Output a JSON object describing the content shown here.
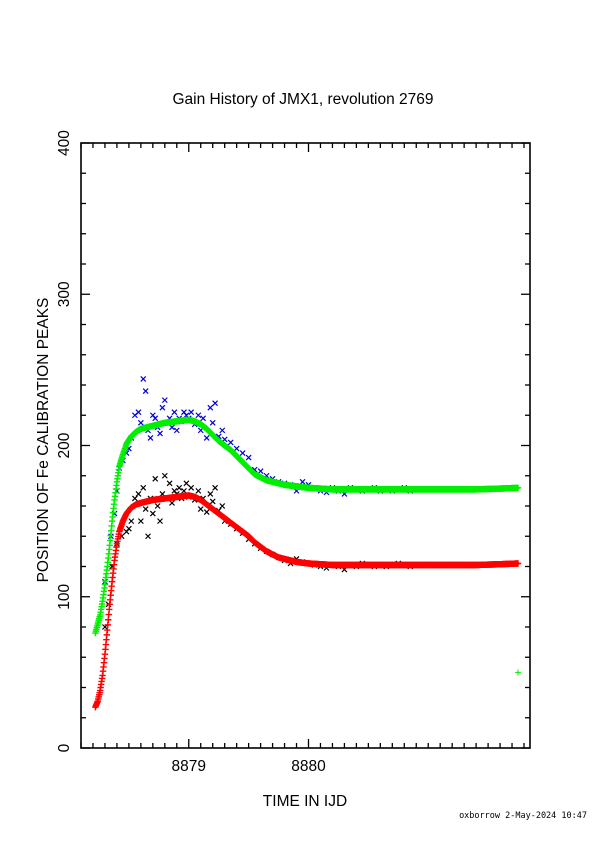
{
  "chart_data": {
    "type": "scatter",
    "title": "Gain History of JMX1, revolution 2769",
    "xlabel": "TIME IN IJD",
    "ylabel": "POSITION OF Fe CALIBRATION PEAKS",
    "xlim": [
      8878.1,
      8881.85
    ],
    "ylim": [
      0,
      400
    ],
    "x_ticks": [
      8879,
      8880
    ],
    "y_ticks": [
      0,
      100,
      200,
      300,
      400
    ],
    "grid": false,
    "footer": "oxborrow 2-May-2024 10:47",
    "series": [
      {
        "color": "#00ee00",
        "marker": "plus",
        "style": "fit",
        "points": [
          [
            8878.22,
            76
          ],
          [
            8878.24,
            82
          ],
          [
            8878.26,
            88
          ],
          [
            8878.28,
            97
          ],
          [
            8878.3,
            108
          ],
          [
            8878.32,
            120
          ],
          [
            8878.34,
            134
          ],
          [
            8878.36,
            150
          ],
          [
            8878.38,
            164
          ],
          [
            8878.4,
            176
          ],
          [
            8878.42,
            186
          ],
          [
            8878.45,
            194
          ],
          [
            8878.48,
            201
          ],
          [
            8878.52,
            206
          ],
          [
            8878.56,
            209
          ],
          [
            8878.6,
            211
          ],
          [
            8878.65,
            212
          ],
          [
            8878.7,
            213
          ],
          [
            8878.75,
            214
          ],
          [
            8878.8,
            215
          ],
          [
            8878.85,
            215.5
          ],
          [
            8878.9,
            216
          ],
          [
            8878.95,
            216.5
          ],
          [
            8879.0,
            217
          ],
          [
            8879.05,
            216
          ],
          [
            8879.1,
            214
          ],
          [
            8879.15,
            211
          ],
          [
            8879.2,
            207
          ],
          [
            8879.25,
            203
          ],
          [
            8879.3,
            200
          ],
          [
            8879.35,
            197
          ],
          [
            8879.4,
            193
          ],
          [
            8879.45,
            189
          ],
          [
            8879.5,
            185
          ],
          [
            8879.55,
            181
          ],
          [
            8879.6,
            179
          ],
          [
            8879.65,
            177
          ],
          [
            8879.7,
            176
          ],
          [
            8879.75,
            175
          ],
          [
            8879.8,
            174
          ],
          [
            8879.85,
            173.5
          ],
          [
            8879.9,
            173
          ],
          [
            8879.95,
            172.5
          ],
          [
            8880.0,
            172
          ],
          [
            8880.1,
            171.5
          ],
          [
            8880.2,
            171
          ],
          [
            8880.3,
            171
          ],
          [
            8880.4,
            171
          ],
          [
            8880.5,
            171
          ],
          [
            8880.6,
            171
          ],
          [
            8880.8,
            171
          ],
          [
            8881.0,
            171
          ],
          [
            8881.2,
            171
          ],
          [
            8881.4,
            171
          ],
          [
            8881.6,
            171.5
          ],
          [
            8881.75,
            172
          ]
        ]
      },
      {
        "color": "#ff0000",
        "marker": "plus",
        "style": "fit",
        "points": [
          [
            8878.22,
            27
          ],
          [
            8878.24,
            31
          ],
          [
            8878.26,
            38
          ],
          [
            8878.28,
            48
          ],
          [
            8878.3,
            62
          ],
          [
            8878.32,
            78
          ],
          [
            8878.34,
            95
          ],
          [
            8878.36,
            110
          ],
          [
            8878.38,
            124
          ],
          [
            8878.4,
            135
          ],
          [
            8878.42,
            143
          ],
          [
            8878.45,
            150
          ],
          [
            8878.48,
            155
          ],
          [
            8878.52,
            159
          ],
          [
            8878.56,
            161
          ],
          [
            8878.6,
            162
          ],
          [
            8878.65,
            163
          ],
          [
            8878.7,
            164
          ],
          [
            8878.75,
            164.5
          ],
          [
            8878.8,
            165
          ],
          [
            8878.85,
            165.5
          ],
          [
            8878.9,
            166
          ],
          [
            8878.95,
            166.5
          ],
          [
            8879.0,
            167
          ],
          [
            8879.05,
            166
          ],
          [
            8879.1,
            164
          ],
          [
            8879.15,
            161
          ],
          [
            8879.2,
            158
          ],
          [
            8879.25,
            155
          ],
          [
            8879.3,
            152
          ],
          [
            8879.35,
            149
          ],
          [
            8879.4,
            146
          ],
          [
            8879.45,
            143
          ],
          [
            8879.5,
            140
          ],
          [
            8879.55,
            136
          ],
          [
            8879.6,
            133
          ],
          [
            8879.65,
            130
          ],
          [
            8879.7,
            128
          ],
          [
            8879.75,
            126
          ],
          [
            8879.8,
            125
          ],
          [
            8879.85,
            124
          ],
          [
            8879.9,
            123
          ],
          [
            8879.95,
            122.5
          ],
          [
            8880.0,
            122
          ],
          [
            8880.1,
            121.5
          ],
          [
            8880.2,
            121
          ],
          [
            8880.3,
            121
          ],
          [
            8880.4,
            121
          ],
          [
            8880.5,
            121
          ],
          [
            8880.6,
            121
          ],
          [
            8880.8,
            121
          ],
          [
            8881.0,
            121
          ],
          [
            8881.2,
            121
          ],
          [
            8881.4,
            121
          ],
          [
            8881.6,
            121.5
          ],
          [
            8881.75,
            122
          ]
        ]
      },
      {
        "color": "#0000dd",
        "marker": "x",
        "style": "scatter",
        "points": [
          [
            8878.3,
            110
          ],
          [
            8878.35,
            140
          ],
          [
            8878.38,
            155
          ],
          [
            8878.4,
            170
          ],
          [
            8878.42,
            185
          ],
          [
            8878.45,
            190
          ],
          [
            8878.48,
            195
          ],
          [
            8878.5,
            198
          ],
          [
            8878.52,
            205
          ],
          [
            8878.55,
            220
          ],
          [
            8878.58,
            222
          ],
          [
            8878.6,
            215
          ],
          [
            8878.62,
            244
          ],
          [
            8878.64,
            236
          ],
          [
            8878.66,
            210
          ],
          [
            8878.68,
            205
          ],
          [
            8878.7,
            220
          ],
          [
            8878.72,
            218
          ],
          [
            8878.74,
            212
          ],
          [
            8878.76,
            208
          ],
          [
            8878.78,
            225
          ],
          [
            8878.8,
            230
          ],
          [
            8878.82,
            215
          ],
          [
            8878.84,
            218
          ],
          [
            8878.86,
            212
          ],
          [
            8878.88,
            222
          ],
          [
            8878.9,
            210
          ],
          [
            8878.92,
            218
          ],
          [
            8878.94,
            216
          ],
          [
            8878.96,
            222
          ],
          [
            8878.98,
            220
          ],
          [
            8879.0,
            218
          ],
          [
            8879.02,
            222
          ],
          [
            8879.05,
            214
          ],
          [
            8879.08,
            220
          ],
          [
            8879.1,
            210
          ],
          [
            8879.12,
            218
          ],
          [
            8879.15,
            205
          ],
          [
            8879.18,
            225
          ],
          [
            8879.2,
            215
          ],
          [
            8879.22,
            228
          ],
          [
            8879.25,
            206
          ],
          [
            8879.28,
            210
          ],
          [
            8879.3,
            204
          ],
          [
            8879.35,
            202
          ],
          [
            8879.4,
            198
          ],
          [
            8879.45,
            195
          ],
          [
            8879.5,
            192
          ],
          [
            8879.55,
            184
          ],
          [
            8879.6,
            183
          ],
          [
            8879.65,
            180
          ],
          [
            8879.7,
            178
          ],
          [
            8879.75,
            176
          ],
          [
            8879.8,
            175
          ],
          [
            8879.85,
            174
          ],
          [
            8879.9,
            170
          ],
          [
            8879.95,
            176
          ],
          [
            8880.0,
            174
          ],
          [
            8880.05,
            172
          ],
          [
            8880.1,
            170
          ],
          [
            8880.15,
            169
          ],
          [
            8880.2,
            172
          ],
          [
            8880.25,
            170
          ],
          [
            8880.3,
            168
          ],
          [
            8880.35,
            172
          ],
          [
            8880.4,
            171
          ],
          [
            8880.45,
            170
          ],
          [
            8880.5,
            171
          ],
          [
            8880.55,
            172
          ],
          [
            8880.6,
            170
          ],
          [
            8880.65,
            171
          ],
          [
            8880.7,
            170
          ],
          [
            8880.75,
            171
          ],
          [
            8880.8,
            172
          ],
          [
            8880.85,
            170
          ],
          [
            8880.9,
            171
          ]
        ]
      },
      {
        "color": "#000000",
        "marker": "x",
        "style": "scatter",
        "points": [
          [
            8878.3,
            80
          ],
          [
            8878.33,
            95
          ],
          [
            8878.36,
            120
          ],
          [
            8878.4,
            135
          ],
          [
            8878.44,
            140
          ],
          [
            8878.48,
            143
          ],
          [
            8878.5,
            145
          ],
          [
            8878.52,
            150
          ],
          [
            8878.55,
            165
          ],
          [
            8878.58,
            168
          ],
          [
            8878.6,
            150
          ],
          [
            8878.62,
            172
          ],
          [
            8878.64,
            158
          ],
          [
            8878.66,
            140
          ],
          [
            8878.68,
            165
          ],
          [
            8878.7,
            155
          ],
          [
            8878.72,
            178
          ],
          [
            8878.74,
            160
          ],
          [
            8878.76,
            150
          ],
          [
            8878.78,
            168
          ],
          [
            8878.8,
            180
          ],
          [
            8878.82,
            165
          ],
          [
            8878.84,
            175
          ],
          [
            8878.86,
            162
          ],
          [
            8878.88,
            170
          ],
          [
            8878.9,
            168
          ],
          [
            8878.92,
            172
          ],
          [
            8878.94,
            165
          ],
          [
            8878.96,
            170
          ],
          [
            8878.98,
            175
          ],
          [
            8879.0,
            166
          ],
          [
            8879.02,
            172
          ],
          [
            8879.05,
            164
          ],
          [
            8879.08,
            170
          ],
          [
            8879.1,
            158
          ],
          [
            8879.12,
            165
          ],
          [
            8879.15,
            156
          ],
          [
            8879.18,
            168
          ],
          [
            8879.2,
            163
          ],
          [
            8879.22,
            172
          ],
          [
            8879.25,
            157
          ],
          [
            8879.28,
            160
          ],
          [
            8879.3,
            150
          ],
          [
            8879.35,
            148
          ],
          [
            8879.4,
            145
          ],
          [
            8879.45,
            142
          ],
          [
            8879.5,
            138
          ],
          [
            8879.55,
            135
          ],
          [
            8879.6,
            132
          ],
          [
            8879.65,
            130
          ],
          [
            8879.7,
            128
          ],
          [
            8879.75,
            126
          ],
          [
            8879.8,
            124
          ],
          [
            8879.85,
            122
          ],
          [
            8879.9,
            125
          ],
          [
            8879.95,
            123
          ],
          [
            8880.0,
            122
          ],
          [
            8880.05,
            121
          ],
          [
            8880.1,
            120
          ],
          [
            8880.15,
            119
          ],
          [
            8880.2,
            121
          ],
          [
            8880.25,
            120
          ],
          [
            8880.3,
            118
          ],
          [
            8880.35,
            121
          ],
          [
            8880.4,
            120
          ],
          [
            8880.45,
            122
          ],
          [
            8880.5,
            121
          ],
          [
            8880.55,
            120
          ],
          [
            8880.6,
            121
          ],
          [
            8880.65,
            120
          ],
          [
            8880.7,
            121
          ],
          [
            8880.75,
            122
          ],
          [
            8880.8,
            121
          ],
          [
            8880.85,
            120
          ],
          [
            8880.9,
            121
          ]
        ]
      },
      {
        "color": "#00ee00",
        "marker": "plus",
        "style": "scatter",
        "points": [
          [
            8881.75,
            50
          ]
        ]
      }
    ]
  }
}
